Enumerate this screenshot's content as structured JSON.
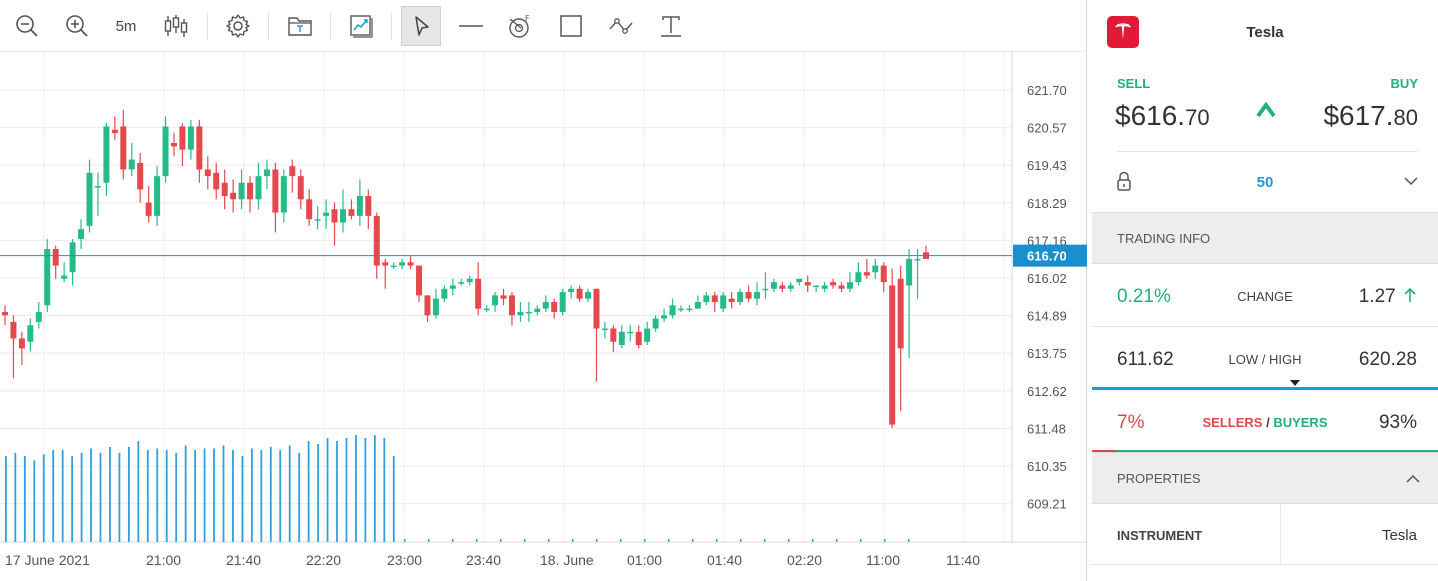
{
  "toolbar": {
    "timeframe": "5m"
  },
  "chart": {
    "price_axis": [
      "621.70",
      "620.57",
      "619.43",
      "618.29",
      "617.16",
      "616.02",
      "614.89",
      "613.75",
      "612.62",
      "611.48",
      "610.35",
      "609.21"
    ],
    "current_price": "616.70",
    "time_axis": [
      "17 June 2021",
      "21:00",
      "21:40",
      "22:20",
      "23:00",
      "23:40",
      "18. June",
      "01:00",
      "01:40",
      "02:20",
      "11:00",
      "11:40"
    ],
    "colors": {
      "up": "#26bc8a",
      "down": "#e5484d",
      "volume": "#2f9fe0",
      "price_line": "#1a8fd0"
    },
    "candles": [
      [
        615.0,
        614.9,
        615.2,
        614.6
      ],
      [
        614.7,
        614.2,
        614.9,
        613.0
      ],
      [
        614.2,
        613.9,
        614.4,
        613.4
      ],
      [
        614.1,
        614.6,
        614.8,
        613.8
      ],
      [
        614.7,
        615.0,
        615.3,
        614.5
      ],
      [
        615.2,
        616.9,
        617.2,
        615.0
      ],
      [
        616.9,
        616.4,
        617.0,
        616.0
      ],
      [
        616.0,
        616.1,
        616.5,
        615.9
      ],
      [
        616.2,
        617.1,
        617.2,
        615.8
      ],
      [
        617.2,
        617.5,
        617.8,
        616.9
      ],
      [
        617.6,
        619.2,
        619.6,
        617.4
      ],
      [
        618.8,
        618.8,
        619.2,
        617.9
      ],
      [
        618.9,
        620.6,
        620.7,
        618.5
      ],
      [
        620.5,
        620.4,
        620.9,
        620.2
      ],
      [
        620.6,
        619.3,
        621.1,
        619.0
      ],
      [
        619.3,
        619.6,
        620.1,
        619.1
      ],
      [
        619.5,
        618.7,
        619.8,
        618.3
      ],
      [
        618.3,
        617.9,
        618.8,
        617.7
      ],
      [
        617.9,
        619.1,
        619.4,
        617.6
      ],
      [
        619.1,
        620.6,
        620.9,
        618.9
      ],
      [
        620.1,
        620.0,
        620.4,
        619.7
      ],
      [
        620.6,
        619.9,
        620.7,
        619.4
      ],
      [
        619.9,
        620.6,
        620.8,
        619.6
      ],
      [
        620.6,
        619.3,
        620.8,
        618.9
      ],
      [
        619.3,
        619.1,
        619.7,
        618.7
      ],
      [
        619.2,
        618.7,
        619.5,
        618.4
      ],
      [
        618.9,
        618.5,
        619.3,
        618.1
      ],
      [
        618.6,
        618.4,
        619.0,
        618.0
      ],
      [
        618.4,
        618.9,
        619.3,
        618.1
      ],
      [
        618.9,
        618.4,
        619.1,
        618.0
      ],
      [
        618.4,
        619.1,
        619.5,
        618.1
      ],
      [
        619.1,
        619.3,
        619.6,
        618.7
      ],
      [
        619.3,
        618.0,
        619.5,
        617.4
      ],
      [
        618.0,
        619.1,
        619.3,
        617.7
      ],
      [
        619.4,
        619.1,
        619.6,
        618.6
      ],
      [
        619.1,
        618.4,
        619.3,
        618.1
      ],
      [
        618.4,
        617.8,
        618.7,
        617.6
      ],
      [
        617.8,
        617.8,
        618.2,
        617.5
      ],
      [
        617.9,
        618.0,
        618.4,
        617.5
      ],
      [
        618.1,
        617.7,
        618.3,
        617.0
      ],
      [
        617.7,
        618.1,
        618.7,
        617.4
      ],
      [
        618.1,
        617.9,
        618.4,
        617.8
      ],
      [
        617.9,
        618.5,
        619.0,
        617.6
      ],
      [
        618.5,
        617.9,
        618.7,
        617.5
      ],
      [
        617.9,
        616.4,
        618.0,
        616.0
      ],
      [
        616.5,
        616.4,
        616.6,
        615.7
      ],
      [
        616.4,
        616.4,
        616.5,
        616.3
      ],
      [
        616.4,
        616.5,
        616.6,
        616.3
      ],
      [
        616.5,
        616.4,
        616.7,
        616.3
      ],
      [
        616.4,
        615.5,
        616.4,
        615.3
      ],
      [
        615.5,
        614.9,
        615.5,
        614.7
      ],
      [
        614.9,
        615.4,
        615.7,
        614.8
      ],
      [
        615.4,
        615.7,
        615.8,
        615.3
      ],
      [
        615.7,
        615.8,
        616.0,
        615.5
      ],
      [
        615.9,
        615.9,
        616.0,
        615.8
      ],
      [
        615.9,
        616.0,
        616.1,
        615.8
      ],
      [
        616.0,
        615.1,
        616.5,
        614.9
      ],
      [
        615.1,
        615.1,
        615.2,
        615.0
      ],
      [
        615.2,
        615.5,
        615.6,
        615.0
      ],
      [
        615.5,
        615.4,
        615.7,
        615.2
      ],
      [
        615.5,
        614.9,
        615.6,
        614.6
      ],
      [
        614.9,
        615.0,
        615.3,
        614.7
      ],
      [
        615.0,
        615.0,
        615.3,
        614.7
      ],
      [
        615.0,
        615.1,
        615.2,
        614.9
      ],
      [
        615.1,
        615.3,
        615.5,
        615.0
      ],
      [
        615.3,
        615.0,
        615.4,
        614.8
      ],
      [
        615.0,
        615.6,
        615.7,
        614.9
      ],
      [
        615.6,
        615.7,
        615.8,
        615.4
      ],
      [
        615.7,
        615.4,
        615.8,
        615.3
      ],
      [
        615.4,
        615.6,
        615.7,
        615.3
      ],
      [
        615.7,
        614.5,
        615.7,
        612.9
      ],
      [
        614.5,
        614.5,
        614.7,
        614.2
      ],
      [
        614.5,
        614.1,
        614.6,
        613.8
      ],
      [
        614.0,
        614.4,
        614.6,
        613.9
      ],
      [
        614.4,
        614.4,
        614.6,
        614.1
      ],
      [
        614.4,
        614.0,
        614.6,
        613.9
      ],
      [
        614.1,
        614.5,
        614.7,
        614.0
      ],
      [
        614.5,
        614.8,
        614.9,
        614.4
      ],
      [
        614.8,
        614.9,
        615.1,
        614.7
      ],
      [
        614.9,
        615.2,
        615.4,
        614.8
      ],
      [
        615.1,
        615.1,
        615.2,
        615.0
      ],
      [
        615.1,
        615.1,
        615.2,
        615.0
      ],
      [
        615.1,
        615.3,
        615.5,
        615.1
      ],
      [
        615.3,
        615.5,
        615.6,
        615.2
      ],
      [
        615.5,
        615.3,
        615.6,
        615.0
      ],
      [
        615.1,
        615.5,
        615.6,
        615.0
      ],
      [
        615.4,
        615.3,
        615.6,
        615.1
      ],
      [
        615.3,
        615.6,
        615.7,
        615.2
      ],
      [
        615.6,
        615.4,
        615.8,
        615.3
      ],
      [
        615.4,
        615.6,
        615.9,
        615.2
      ],
      [
        615.7,
        615.7,
        616.2,
        615.4
      ],
      [
        615.7,
        615.9,
        616.0,
        615.6
      ],
      [
        615.8,
        615.7,
        615.9,
        615.6
      ],
      [
        615.7,
        615.8,
        615.9,
        615.6
      ],
      [
        615.9,
        616.0,
        616.0,
        615.8
      ],
      [
        615.9,
        615.8,
        616.1,
        615.6
      ],
      [
        615.8,
        615.8,
        615.8,
        615.6
      ],
      [
        615.7,
        615.8,
        615.9,
        615.6
      ],
      [
        615.9,
        615.8,
        616.0,
        615.7
      ],
      [
        615.8,
        615.7,
        615.9,
        615.6
      ],
      [
        615.7,
        615.9,
        616.2,
        615.6
      ],
      [
        615.9,
        616.2,
        616.5,
        615.8
      ],
      [
        616.2,
        616.1,
        616.6,
        616.0
      ],
      [
        616.2,
        616.4,
        616.6,
        616.0
      ],
      [
        616.4,
        615.9,
        616.5,
        615.6
      ],
      [
        615.8,
        611.6,
        616.3,
        611.5
      ],
      [
        616.0,
        613.9,
        616.4,
        612.0
      ],
      [
        615.8,
        616.6,
        616.9,
        613.6
      ],
      [
        616.6,
        616.6,
        616.9,
        615.4
      ],
      [
        616.8,
        616.6,
        617.0,
        616.6
      ]
    ],
    "volumes": [
      0.58,
      0.6,
      0.58,
      0.55,
      0.59,
      0.62,
      0.62,
      0.58,
      0.6,
      0.63,
      0.6,
      0.64,
      0.6,
      0.64,
      0.68,
      0.62,
      0.63,
      0.62,
      0.6,
      0.65,
      0.62,
      0.63,
      0.63,
      0.65,
      0.62,
      0.58,
      0.63,
      0.62,
      0.64,
      0.62,
      0.65,
      0.6,
      0.68,
      0.66,
      0.7,
      0.68,
      0.7,
      0.72,
      0.7,
      0.72,
      0.7,
      0.58
    ]
  },
  "instrument": {
    "name": "Tesla",
    "sell_label": "SELL",
    "buy_label": "BUY",
    "sell_main": "$616.",
    "sell_small": "70",
    "buy_main": "$617.",
    "buy_small": "80",
    "leverage": "50"
  },
  "trading_info": {
    "title": "TRADING INFO",
    "change_pct": "0.21%",
    "change_label": "CHANGE",
    "change_value": "1.27",
    "low": "611.62",
    "low_high_label": "LOW / HIGH",
    "high": "620.28",
    "sellers_pct": "7%",
    "sellers_label": "SELLERS",
    "sep": " / ",
    "buyers_label": "BUYERS",
    "buyers_pct": "93%",
    "sellers_fraction": 0.07
  },
  "properties": {
    "title": "PROPERTIES",
    "instrument_key": "INSTRUMENT",
    "instrument_value": "Tesla"
  }
}
